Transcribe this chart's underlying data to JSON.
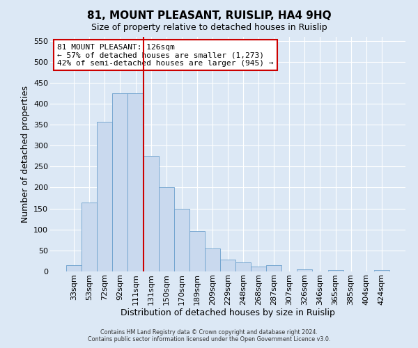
{
  "title": "81, MOUNT PLEASANT, RUISLIP, HA4 9HQ",
  "subtitle": "Size of property relative to detached houses in Ruislip",
  "xlabel": "Distribution of detached houses by size in Ruislip",
  "ylabel": "Number of detached properties",
  "bar_labels": [
    "33sqm",
    "53sqm",
    "72sqm",
    "92sqm",
    "111sqm",
    "131sqm",
    "150sqm",
    "170sqm",
    "189sqm",
    "209sqm",
    "229sqm",
    "248sqm",
    "268sqm",
    "287sqm",
    "307sqm",
    "326sqm",
    "346sqm",
    "365sqm",
    "385sqm",
    "404sqm",
    "424sqm"
  ],
  "bar_values": [
    15,
    165,
    357,
    425,
    425,
    275,
    200,
    150,
    97,
    55,
    28,
    22,
    12,
    15,
    0,
    5,
    0,
    3,
    0,
    0,
    3
  ],
  "bar_color": "#c9d9ee",
  "bar_edge_color": "#6ca0cc",
  "vline_index": 5,
  "vline_color": "#cc0000",
  "annotation_title": "81 MOUNT PLEASANT: 126sqm",
  "annotation_line1": "← 57% of detached houses are smaller (1,273)",
  "annotation_line2": "42% of semi-detached houses are larger (945) →",
  "annotation_box_edge_color": "#cc0000",
  "ylim": [
    0,
    560
  ],
  "yticks": [
    0,
    50,
    100,
    150,
    200,
    250,
    300,
    350,
    400,
    450,
    500,
    550
  ],
  "footer_line1": "Contains HM Land Registry data © Crown copyright and database right 2024.",
  "footer_line2": "Contains public sector information licensed under the Open Government Licence v3.0.",
  "background_color": "#dce8f5",
  "plot_bg_color": "#dce8f5",
  "grid_color": "#ffffff",
  "title_fontsize": 11,
  "subtitle_fontsize": 9,
  "axis_label_fontsize": 9,
  "tick_fontsize": 8
}
